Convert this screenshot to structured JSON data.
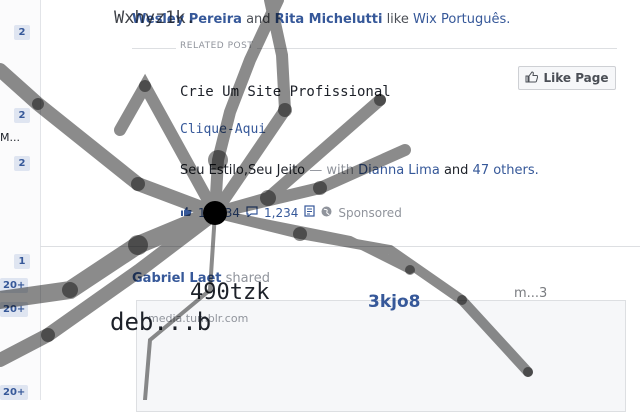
{
  "sidebar": {
    "badges": [
      "2",
      "2",
      "2",
      "1",
      "20+",
      "20+",
      "20+"
    ],
    "partial_label": "M..."
  },
  "story": {
    "prefix": "Wesley Pereira",
    "conjunction": "and",
    "friend": "Rita Michelutti",
    "verb": "like",
    "page": "Wix Português."
  },
  "related": {
    "label": "RELATED POST"
  },
  "like_page": {
    "label": "Like Page"
  },
  "post": {
    "title": "Crie Um Site Profissional",
    "cta": "Clique-Aqui",
    "subtitle": "Seu Estilo,Seu Jeito",
    "with_text": "— with",
    "tagged": "Dianna Lima",
    "and": "and",
    "others": "47 others."
  },
  "meta": {
    "likes": "16,834",
    "comments": "1,234",
    "sponsored": "Sponsored"
  },
  "share": {
    "author": "Gabriel Laet",
    "action": "shared"
  },
  "attachment": {
    "domain": "media.tumblr.com"
  },
  "overlay_text": {
    "g1": "Wxhyz1k.",
    "g2": "490tzk",
    "g3": "deb...b",
    "g4": "3kjo8",
    "g5": "m...3"
  },
  "colors": {
    "link": "#365899",
    "muted": "#90949c",
    "badge_bg": "#dfe5f1",
    "overlay": "#000000"
  }
}
